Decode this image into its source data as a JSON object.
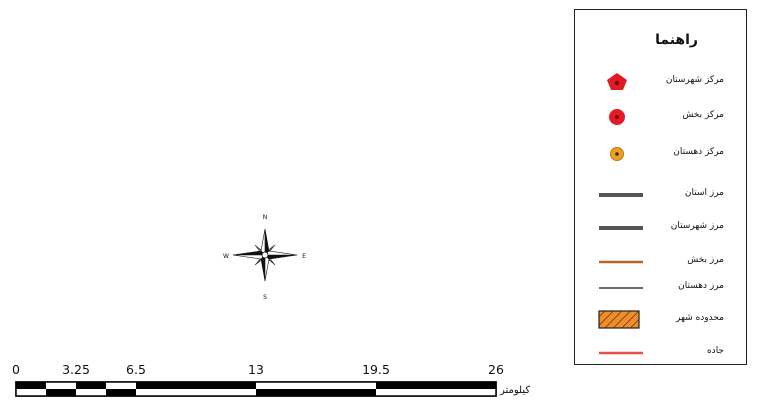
{
  "legend": {
    "title": "راهنما",
    "items": [
      {
        "label": "مرکز شهرستان",
        "symbol": "pentagon",
        "color": "#e01b24"
      },
      {
        "label": "مرکز بخش",
        "symbol": "circle",
        "color": "#e01b24"
      },
      {
        "label": "مرکز دهستان",
        "symbol": "dot-circle",
        "color": "#f0a020"
      },
      {
        "label": "مرز استان",
        "symbol": "thick-line",
        "color": "#555555"
      },
      {
        "label": "مرز شهرستان",
        "symbol": "thick-line",
        "color": "#555555"
      },
      {
        "label": "مرز بخش",
        "symbol": "line",
        "color": "#b5652a"
      },
      {
        "label": "مرز دهستان",
        "symbol": "thin-line",
        "color": "#2c3e50"
      },
      {
        "label": "محدوده شهر",
        "symbol": "hatch",
        "color": "#f28c28"
      },
      {
        "label": "جاده",
        "symbol": "line",
        "color": "#e8504a"
      }
    ]
  },
  "north_arrow": {
    "n": "N",
    "s": "S",
    "e": "E",
    "w": "W"
  },
  "scale_bar": {
    "unit": "کیلومتر",
    "ticks": [
      0,
      3.25,
      6.5,
      13,
      19.5,
      26
    ],
    "tick_labels": [
      "0",
      "3.25",
      "6.5",
      "13",
      "19.5",
      "26"
    ]
  }
}
